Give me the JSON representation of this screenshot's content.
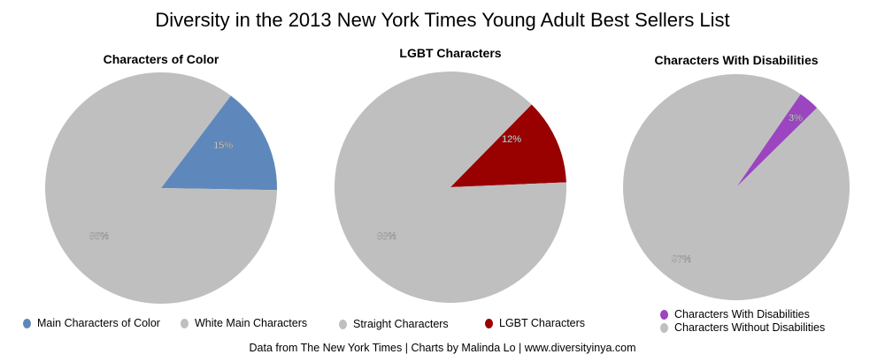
{
  "chart_data": [
    {
      "type": "pie",
      "title": "Characters of Color",
      "slices": [
        {
          "label": "Main Characters of Color",
          "value": 15,
          "display": "15%",
          "color": "#5E88BB"
        },
        {
          "label": "White Main Characters",
          "value": 85,
          "display": "85%",
          "color": "#BFBFBF"
        }
      ]
    },
    {
      "type": "pie",
      "title": "LGBT Characters",
      "slices": [
        {
          "label": "LGBT Characters",
          "value": 12,
          "display": "12%",
          "color": "#990000"
        },
        {
          "label": "Straight Characters",
          "value": 88,
          "display": "88%",
          "color": "#BFBFBF"
        }
      ]
    },
    {
      "type": "pie",
      "title": "Characters With Disabilities",
      "slices": [
        {
          "label": "Characters With Disabilities",
          "value": 3,
          "display": "3%",
          "color": "#9B45C0"
        },
        {
          "label": "Characters Without Disabilities",
          "value": 97,
          "display": "97%",
          "color": "#BFBFBF"
        }
      ]
    }
  ],
  "title": "Diversity in the 2013 New York Times Young Adult Best Sellers List",
  "footer": "Data from The New York Times | Charts by Malinda Lo | www.diversityinya.com"
}
